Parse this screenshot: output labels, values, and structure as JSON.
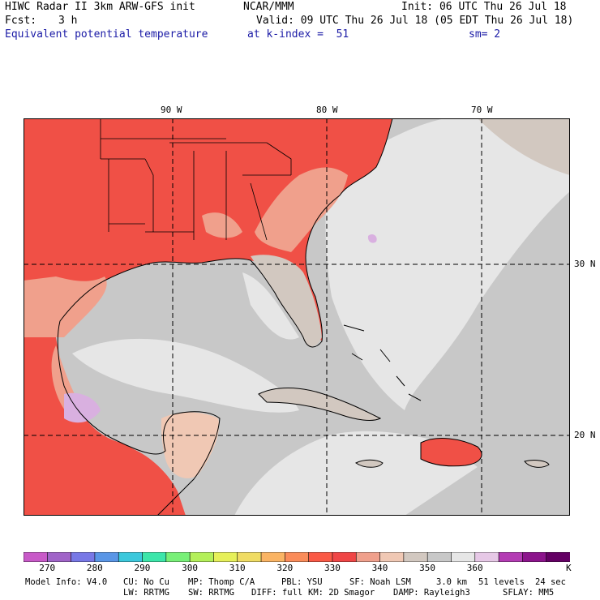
{
  "header": {
    "model": "HIWC Radar II 3km ARW-GFS init",
    "org": "NCAR/MMM",
    "init": "Init: 06 UTC Thu 26 Jul 18",
    "fcst_label": "Fcst:",
    "fcst_value": "3 h",
    "valid": "Valid: 09 UTC Thu 26 Jul 18 (05 EDT Thu 26 Jul 18)",
    "field": "Equivalent potential temperature",
    "level": "at k-index =  51",
    "smooth": "sm= 2"
  },
  "map": {
    "lon_labels": [
      "90 W",
      "80 W",
      "70 W"
    ],
    "lat_labels": [
      "30 N",
      "20 N"
    ]
  },
  "colorbar": {
    "colors": [
      "#c85ac8",
      "#a064c8",
      "#7878e6",
      "#5a96e6",
      "#3cc8dc",
      "#3ce6aa",
      "#78f078",
      "#b4f05a",
      "#e6f05a",
      "#f0dc64",
      "#fab464",
      "#fa8c5a",
      "#fa5a46",
      "#f04646",
      "#f0a08c",
      "#f0c8b4",
      "#d2c8c0",
      "#c8c8c8",
      "#e6e6e6",
      "#e6c8e6",
      "#b43cb4",
      "#8c148c",
      "#640064"
    ],
    "labels": [
      "270",
      "280",
      "290",
      "300",
      "310",
      "320",
      "330",
      "340",
      "350",
      "360"
    ],
    "unit": "K"
  },
  "footer": {
    "model_info": "Model Info: V4.0",
    "cu": "CU: No Cu",
    "mp": "MP: Thomp C/A",
    "pbl": "PBL: YSU",
    "sf": "SF: Noah LSM",
    "res": "3.0 km",
    "levels": "51 levels",
    "dt": "24 sec",
    "lw": "LW: RRTMG",
    "sw": "SW: RRTMG",
    "diff": "DIFF: full",
    "km": "KM: 2D Smagor",
    "damp": "DAMP: Rayleigh3",
    "sflay": "SFLAY: MM5"
  }
}
